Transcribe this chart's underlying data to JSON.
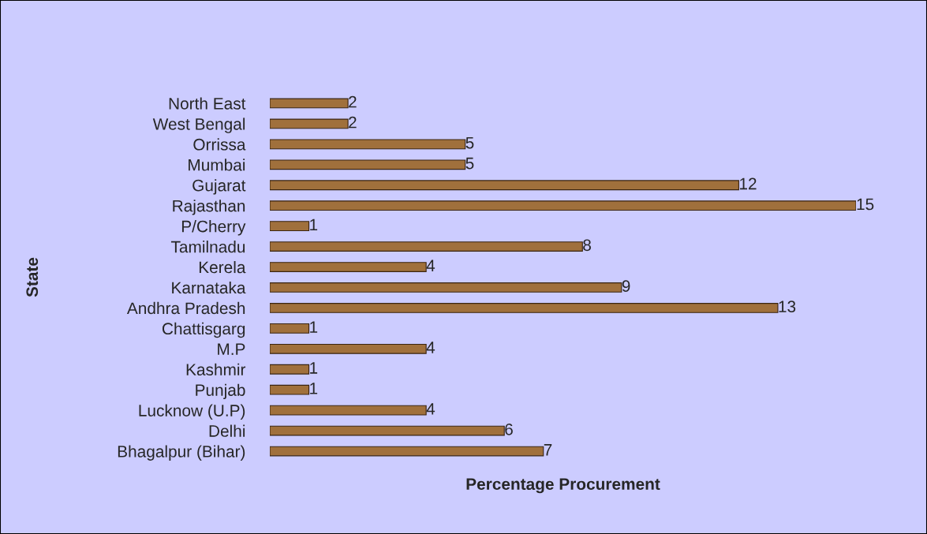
{
  "chart_data": {
    "type": "bar",
    "orientation": "horizontal",
    "xlabel": "Percentage Procurement",
    "ylabel": "State",
    "categories": [
      "North East",
      "West Bengal",
      "Orrissa",
      "Mumbai",
      "Gujarat",
      "Rajasthan",
      "P/Cherry",
      "Tamilnadu",
      "Kerela",
      "Karnataka",
      "Andhra Pradesh",
      "Chattisgarg",
      "M.P",
      "Kashmir",
      "Punjab",
      "Lucknow (U.P)",
      "Delhi",
      "Bhagalpur (Bihar)"
    ],
    "values": [
      2,
      2,
      5,
      5,
      12,
      15,
      1,
      8,
      4,
      9,
      13,
      1,
      4,
      1,
      1,
      4,
      6,
      7
    ],
    "color": "#a0703c",
    "data_labels": true,
    "tick_labels": "y",
    "grid": false,
    "legend": false
  }
}
